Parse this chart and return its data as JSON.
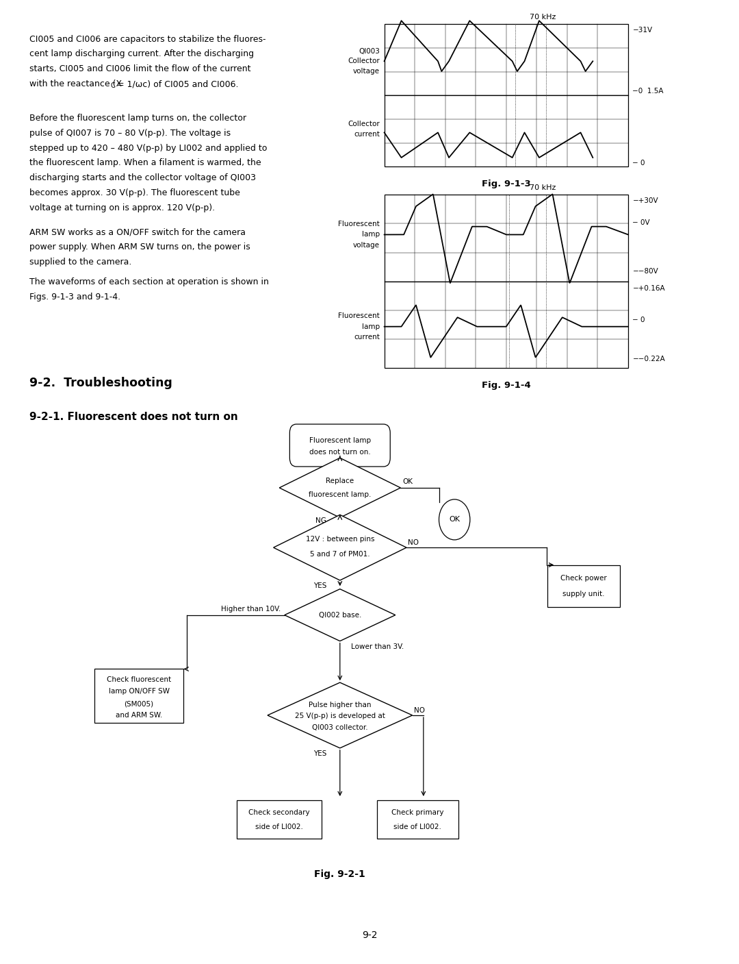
{
  "page_bg": "#ffffff",
  "section_title": "9-2.  Troubleshooting",
  "subsection_title": "9-2-1. Fluorescent does not turn on",
  "fig_label_913": "Fig. 9-1-3",
  "fig_label_914": "Fig. 9-1-4",
  "fig_label_921": "Fig. 9-2-1",
  "page_number": "9-2",
  "para1": "CI005 and CI006 are capacitors to stabilize the fluores-\ncent lamp discharging current. After the discharging\nstarts, CI005 and CI006 limit the flow of the current\nwith the reactance (XC = 1/wc) of CI005 and CI006.",
  "para2": "Before the fluorescent lamp turns on, the collector\npulse of QI007 is 70 - 80 V(p-p). The voltage is\nstepped up to 420 - 480 V(p-p) by LI002 and applied to\nthe fluorescent lamp. When a filament is warmed, the\ndischarging starts and the collector voltage of QI003\nbecomes approx. 30 V(p-p). The fluorescent tube\nvoltage at turning on is approx. 120 V(p-p).",
  "para3": "ARM SW works as a ON/OFF switch for the camera\npower supply. When ARM SW turns on, the power is\nsupplied to the camera.",
  "para4": "The waveforms of each section at operation is shown in\nFigs. 9-1-3 and 9-1-4."
}
